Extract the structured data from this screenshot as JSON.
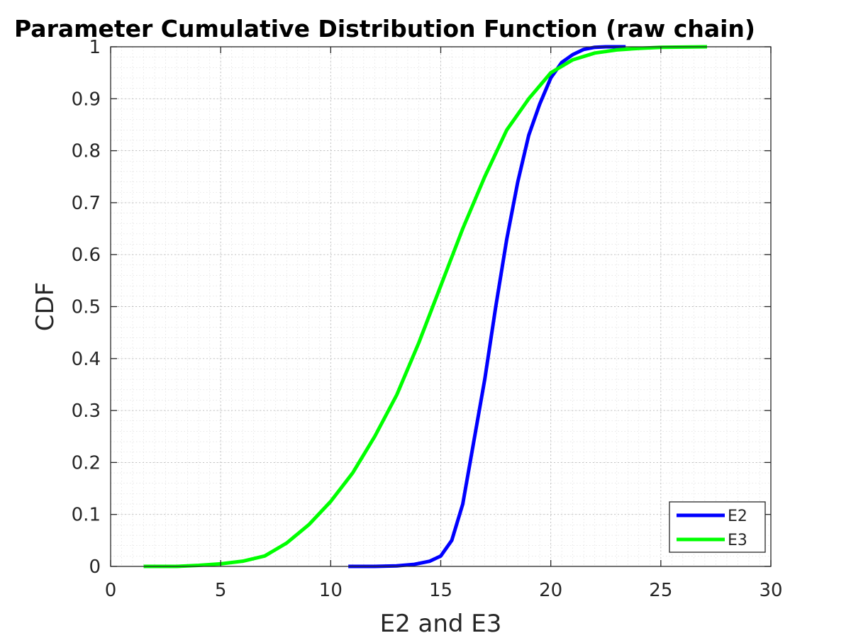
{
  "chart_data": {
    "type": "line",
    "title": "Parameter Cumulative Distribution Function (raw chain)",
    "xlabel": "E2 and E3",
    "ylabel": "CDF",
    "xlim": [
      0,
      30
    ],
    "ylim": [
      0,
      1
    ],
    "x_ticks": [
      0,
      5,
      10,
      15,
      20,
      25,
      30
    ],
    "x_tick_labels": [
      "0",
      "5",
      "10",
      "15",
      "20",
      "25",
      "30"
    ],
    "y_ticks": [
      0,
      0.1,
      0.2,
      0.3,
      0.4,
      0.5,
      0.6,
      0.7,
      0.8,
      0.9,
      1
    ],
    "y_tick_labels": [
      "0",
      "0.1",
      "0.2",
      "0.3",
      "0.4",
      "0.5",
      "0.6",
      "0.7",
      "0.8",
      "0.9",
      "1"
    ],
    "grid": true,
    "minor_grid": true,
    "legend": {
      "placement": "bottom-right"
    },
    "series": [
      {
        "name": "E2",
        "color": "#0000ff",
        "x": [
          10.8,
          12.0,
          13.0,
          13.8,
          14.5,
          15.0,
          15.5,
          16.0,
          16.5,
          17.0,
          17.5,
          18.0,
          18.5,
          19.0,
          19.5,
          20.0,
          20.5,
          21.0,
          21.5,
          22.0,
          22.5,
          23.4
        ],
        "y": [
          0.0,
          0.0,
          0.001,
          0.004,
          0.01,
          0.02,
          0.05,
          0.12,
          0.24,
          0.36,
          0.5,
          0.63,
          0.74,
          0.83,
          0.89,
          0.94,
          0.97,
          0.985,
          0.995,
          0.999,
          1.0,
          1.0
        ]
      },
      {
        "name": "E3",
        "color": "#00ff00",
        "x": [
          1.5,
          3.0,
          4.0,
          5.0,
          6.0,
          7.0,
          8.0,
          9.0,
          10.0,
          11.0,
          12.0,
          13.0,
          14.0,
          15.0,
          16.0,
          17.0,
          18.0,
          19.0,
          20.0,
          21.0,
          22.0,
          23.0,
          24.0,
          25.0,
          27.1
        ],
        "y": [
          0.0,
          0.0,
          0.002,
          0.005,
          0.01,
          0.02,
          0.045,
          0.08,
          0.125,
          0.18,
          0.25,
          0.33,
          0.43,
          0.54,
          0.65,
          0.75,
          0.84,
          0.9,
          0.95,
          0.975,
          0.988,
          0.994,
          0.997,
          0.999,
          1.0
        ]
      }
    ]
  }
}
